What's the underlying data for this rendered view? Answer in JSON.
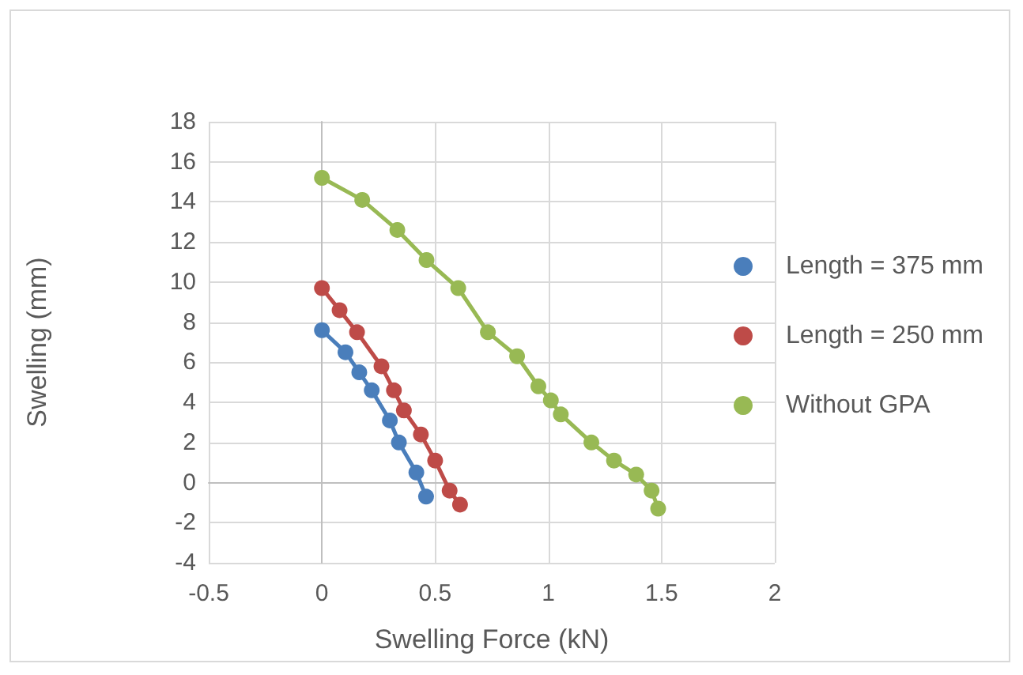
{
  "chart_data": {
    "type": "line",
    "xlabel": "Swelling Force (kN)",
    "ylabel": "Swelling (mm)",
    "xlim": [
      -0.5,
      2
    ],
    "xticks": [
      -0.5,
      0,
      0.5,
      1,
      1.5,
      2
    ],
    "ylim": [
      -4,
      18
    ],
    "yticks": [
      -4,
      -2,
      0,
      2,
      4,
      6,
      8,
      10,
      12,
      14,
      16,
      18
    ],
    "grid": true,
    "legend": "right",
    "marker": "circle",
    "line_style": "solid",
    "series": [
      {
        "name": "Length = 375 mm",
        "color": "#4a7ebb",
        "x": [
          0,
          0.104,
          0.165,
          0.22,
          0.3,
          0.34,
          0.417,
          0.46
        ],
        "values": [
          7.6,
          6.5,
          5.5,
          4.6,
          3.1,
          2.0,
          0.5,
          -0.7
        ]
      },
      {
        "name": "Length = 250 mm",
        "color": "#be4b48",
        "x": [
          0,
          0.078,
          0.155,
          0.263,
          0.318,
          0.362,
          0.437,
          0.5,
          0.564,
          0.61
        ],
        "values": [
          9.7,
          8.6,
          7.5,
          5.8,
          4.6,
          3.6,
          2.4,
          1.1,
          -0.4,
          -1.1
        ]
      },
      {
        "name": "Without GPA",
        "color": "#98b954",
        "x": [
          0,
          0.178,
          0.333,
          0.462,
          0.602,
          0.733,
          0.862,
          0.956,
          1.011,
          1.055,
          1.19,
          1.29,
          1.388,
          1.456,
          1.485
        ],
        "values": [
          15.2,
          14.1,
          12.6,
          11.1,
          9.7,
          7.5,
          6.3,
          4.8,
          4.1,
          3.4,
          2.0,
          1.1,
          0.4,
          -0.4,
          -1.3
        ]
      }
    ]
  }
}
